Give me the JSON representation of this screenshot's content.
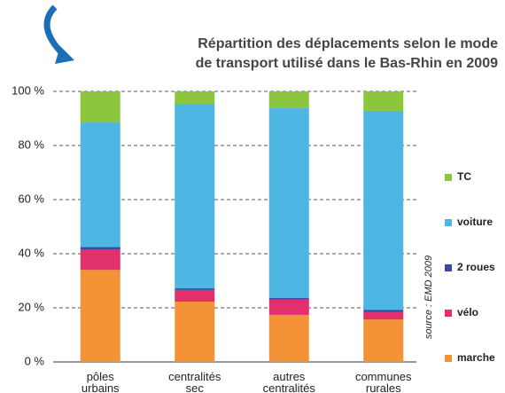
{
  "chart_data": {
    "type": "stacked_bar",
    "title": [
      "Répartition des déplacements selon le mode",
      "de transport utilisé dans le Bas-Rhin en 2009"
    ],
    "categories": [
      "pôles urbains",
      "centralités sec",
      "autres centralités",
      "communes rurales"
    ],
    "series": [
      {
        "name": "marche",
        "color": "#f39237",
        "values": [
          34,
          22.3,
          17.4,
          15.7
        ]
      },
      {
        "name": "vélo",
        "color": "#e1306c",
        "values": [
          7.5,
          4.3,
          5.6,
          2.7
        ]
      },
      {
        "name": "2 roues",
        "color": "#3a4aa3",
        "values": [
          1,
          0.6,
          0.6,
          0.9
        ]
      },
      {
        "name": "voiture",
        "color": "#4db6e2",
        "values": [
          46,
          68.2,
          70.2,
          73.5
        ]
      },
      {
        "name": "TC",
        "color": "#8cc63f",
        "values": [
          11.5,
          4.6,
          6.2,
          7.2
        ]
      }
    ],
    "ylim": [
      0,
      100
    ],
    "yticks": [
      {
        "value": 0,
        "label": "0 %"
      },
      {
        "value": 20,
        "label": "20 %"
      },
      {
        "value": 40,
        "label": "40 %"
      },
      {
        "value": 60,
        "label": "60 %"
      },
      {
        "value": 80,
        "label": "80 %"
      },
      {
        "value": 100,
        "label": "100 %"
      }
    ],
    "grid": true,
    "source": "source : EMD 2009"
  }
}
